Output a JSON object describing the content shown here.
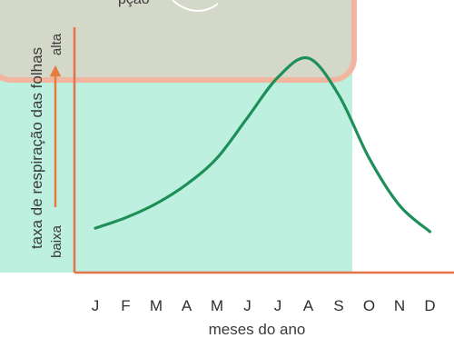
{
  "chart_data": {
    "type": "line",
    "title": "",
    "xlabel": "meses do ano",
    "ylabel": "taxa de respiração das folhas",
    "y_high_label": "alta",
    "y_low_label": "baixa",
    "partial_top_text": "pção",
    "categories": [
      "J",
      "F",
      "M",
      "A",
      "M",
      "J",
      "J",
      "A",
      "S",
      "O",
      "N",
      "D"
    ],
    "series": [
      {
        "values": [
          0.02,
          0.08,
          0.16,
          0.27,
          0.42,
          0.65,
          0.88,
          0.99,
          0.78,
          0.42,
          0.15,
          0.0
        ]
      }
    ],
    "ylim": [
      0,
      1
    ],
    "grid": false,
    "colors": {
      "line": "#1f8f5a",
      "axis": "#e2734a",
      "arrow": "#e87a3c",
      "panel": "#bdf0de",
      "top_box": "#d6d6c6",
      "top_box_border": "#f2b6a0"
    }
  }
}
